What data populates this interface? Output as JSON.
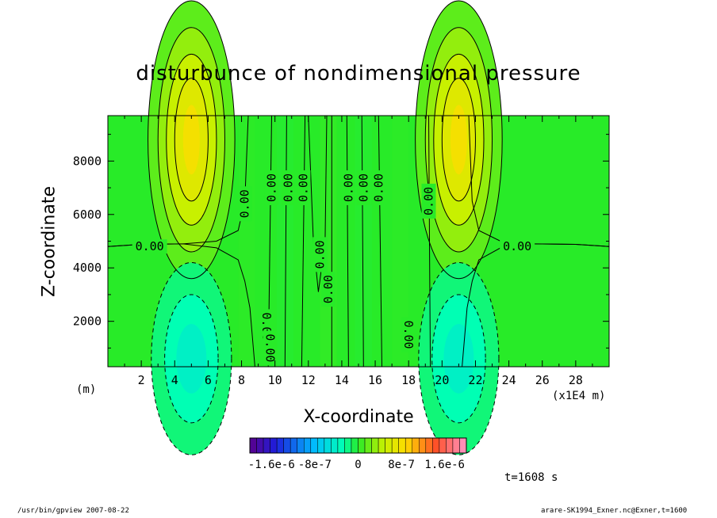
{
  "chart_data": {
    "type": "contour",
    "title": "disturbunce of nondimensional pressure",
    "xlabel": "X-coordinate",
    "ylabel": "Z-coordinate",
    "x_unit_left": "(m)",
    "x_unit_right": "(x1E4 m)",
    "x_ticks": [
      "2",
      "4",
      "6",
      "8",
      "10",
      "12",
      "14",
      "16",
      "18",
      "20",
      "22",
      "24",
      "26",
      "28"
    ],
    "y_ticks": [
      "2000",
      "4000",
      "6000",
      "8000"
    ],
    "xlim": [
      0,
      30
    ],
    "ylim": [
      300,
      9700
    ],
    "contour_labels": [
      "0.00",
      "0.00",
      "0.00",
      "0.00",
      "0.00",
      "0.00",
      "0.00",
      "0.00",
      "0.00",
      "0.00",
      "0.00",
      "0.00",
      "0.00",
      "0.00",
      "0.00"
    ],
    "colorbar": {
      "tick_labels": [
        "-1.6e-6",
        "-8e-7",
        "0",
        "8e-7",
        "1.6e-6"
      ],
      "min": -2e-06,
      "max": 2e-06
    },
    "annotations": {
      "time": "t=1608 s",
      "footer_left": "/usr/bin/gpview   2007-08-22",
      "footer_right": "arare-SK1994_Exner.nc@Exner,t=1600"
    }
  }
}
